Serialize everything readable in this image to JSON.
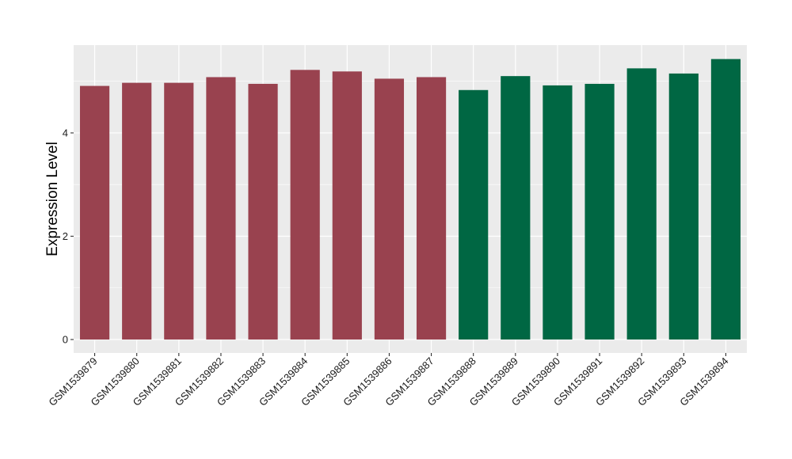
{
  "chart_data": {
    "type": "bar",
    "title": "",
    "xlabel": "",
    "ylabel": "Expression Level",
    "categories": [
      "GSM1539879",
      "GSM1539880",
      "GSM1539881",
      "GSM1539882",
      "GSM1539883",
      "GSM1539884",
      "GSM1539885",
      "GSM1539886",
      "GSM1539887",
      "GSM1539888",
      "GSM1539889",
      "GSM1539890",
      "GSM1539891",
      "GSM1539892",
      "GSM1539893",
      "GSM1539894"
    ],
    "values": [
      4.91,
      4.97,
      4.97,
      5.08,
      4.95,
      5.22,
      5.19,
      5.05,
      5.08,
      4.83,
      5.1,
      4.92,
      4.95,
      5.25,
      5.15,
      5.43
    ],
    "bar_colors": [
      "#99424f",
      "#99424f",
      "#99424f",
      "#99424f",
      "#99424f",
      "#99424f",
      "#99424f",
      "#99424f",
      "#99424f",
      "#006743",
      "#006743",
      "#006743",
      "#006743",
      "#006743",
      "#006743",
      "#006743"
    ],
    "ylim": [
      -0.26,
      5.7
    ],
    "yticks": [
      0,
      2,
      4
    ],
    "ytick_labels": [
      "0",
      "2",
      "4"
    ],
    "grid": true,
    "legend": "none",
    "panel_background": "#ebebeb",
    "grid_color": "#ffffff"
  }
}
